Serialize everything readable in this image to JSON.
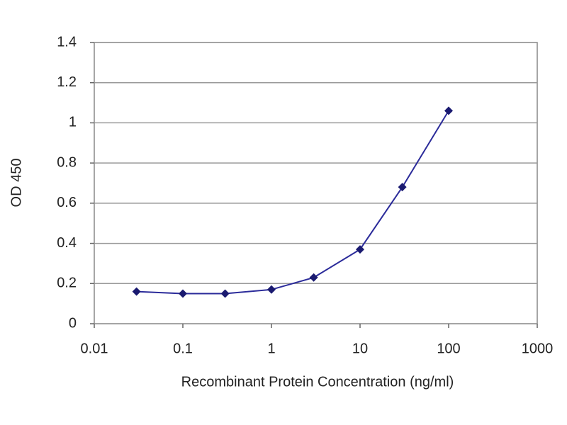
{
  "chart_data": {
    "type": "line",
    "x_label": "Recombinant Protein Concentration (ng/ml)",
    "y_label": "OD 450",
    "x": [
      0.03,
      0.1,
      0.3,
      1,
      3,
      10,
      30,
      100
    ],
    "series": [
      {
        "color": "#2b2b9a",
        "values": [
          0.16,
          0.15,
          0.15,
          0.17,
          0.23,
          0.37,
          0.68,
          1.06
        ]
      }
    ],
    "xlim": [
      0.01,
      1000
    ],
    "xticks": [
      0.01,
      0.1,
      1,
      10,
      100,
      1000
    ],
    "xscale": "log",
    "ylim": [
      0,
      1.4
    ],
    "yticks": [
      0,
      0.2,
      0.4,
      0.6,
      0.8,
      1,
      1.2,
      1.4
    ],
    "grid": true
  }
}
